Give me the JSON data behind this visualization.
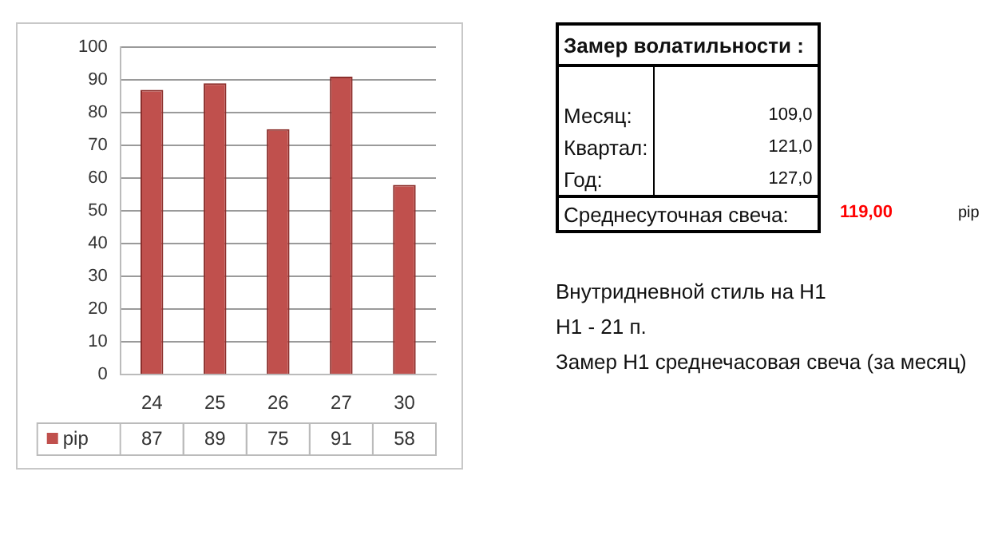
{
  "chart_data": [
    {
      "type": "bar",
      "categories": [
        "24",
        "25",
        "26",
        "27",
        "30"
      ],
      "series": [
        {
          "name": "pip",
          "color": "#c0504d",
          "values": [
            87,
            89,
            75,
            91,
            58
          ]
        }
      ],
      "ylim": [
        0,
        100
      ],
      "yticks": [
        0,
        10,
        20,
        30,
        40,
        50,
        60,
        70,
        80,
        90,
        100
      ],
      "grid": "y",
      "data_labels": true,
      "legend": "bottom"
    },
    {
      "type": "other",
      "annotations": [
        "Замер  волатильности  :",
        "Месяц:",
        "109,0",
        "Квартал:",
        "121,0",
        "Год:",
        "127,0",
        "Среднесуточная свеча:",
        "119,00",
        "pip",
        "Внутридневной стиль на H1",
        "H1 - 21 п.",
        "Замер H1 среднечасовая свеча (за месяц)"
      ]
    }
  ]
}
